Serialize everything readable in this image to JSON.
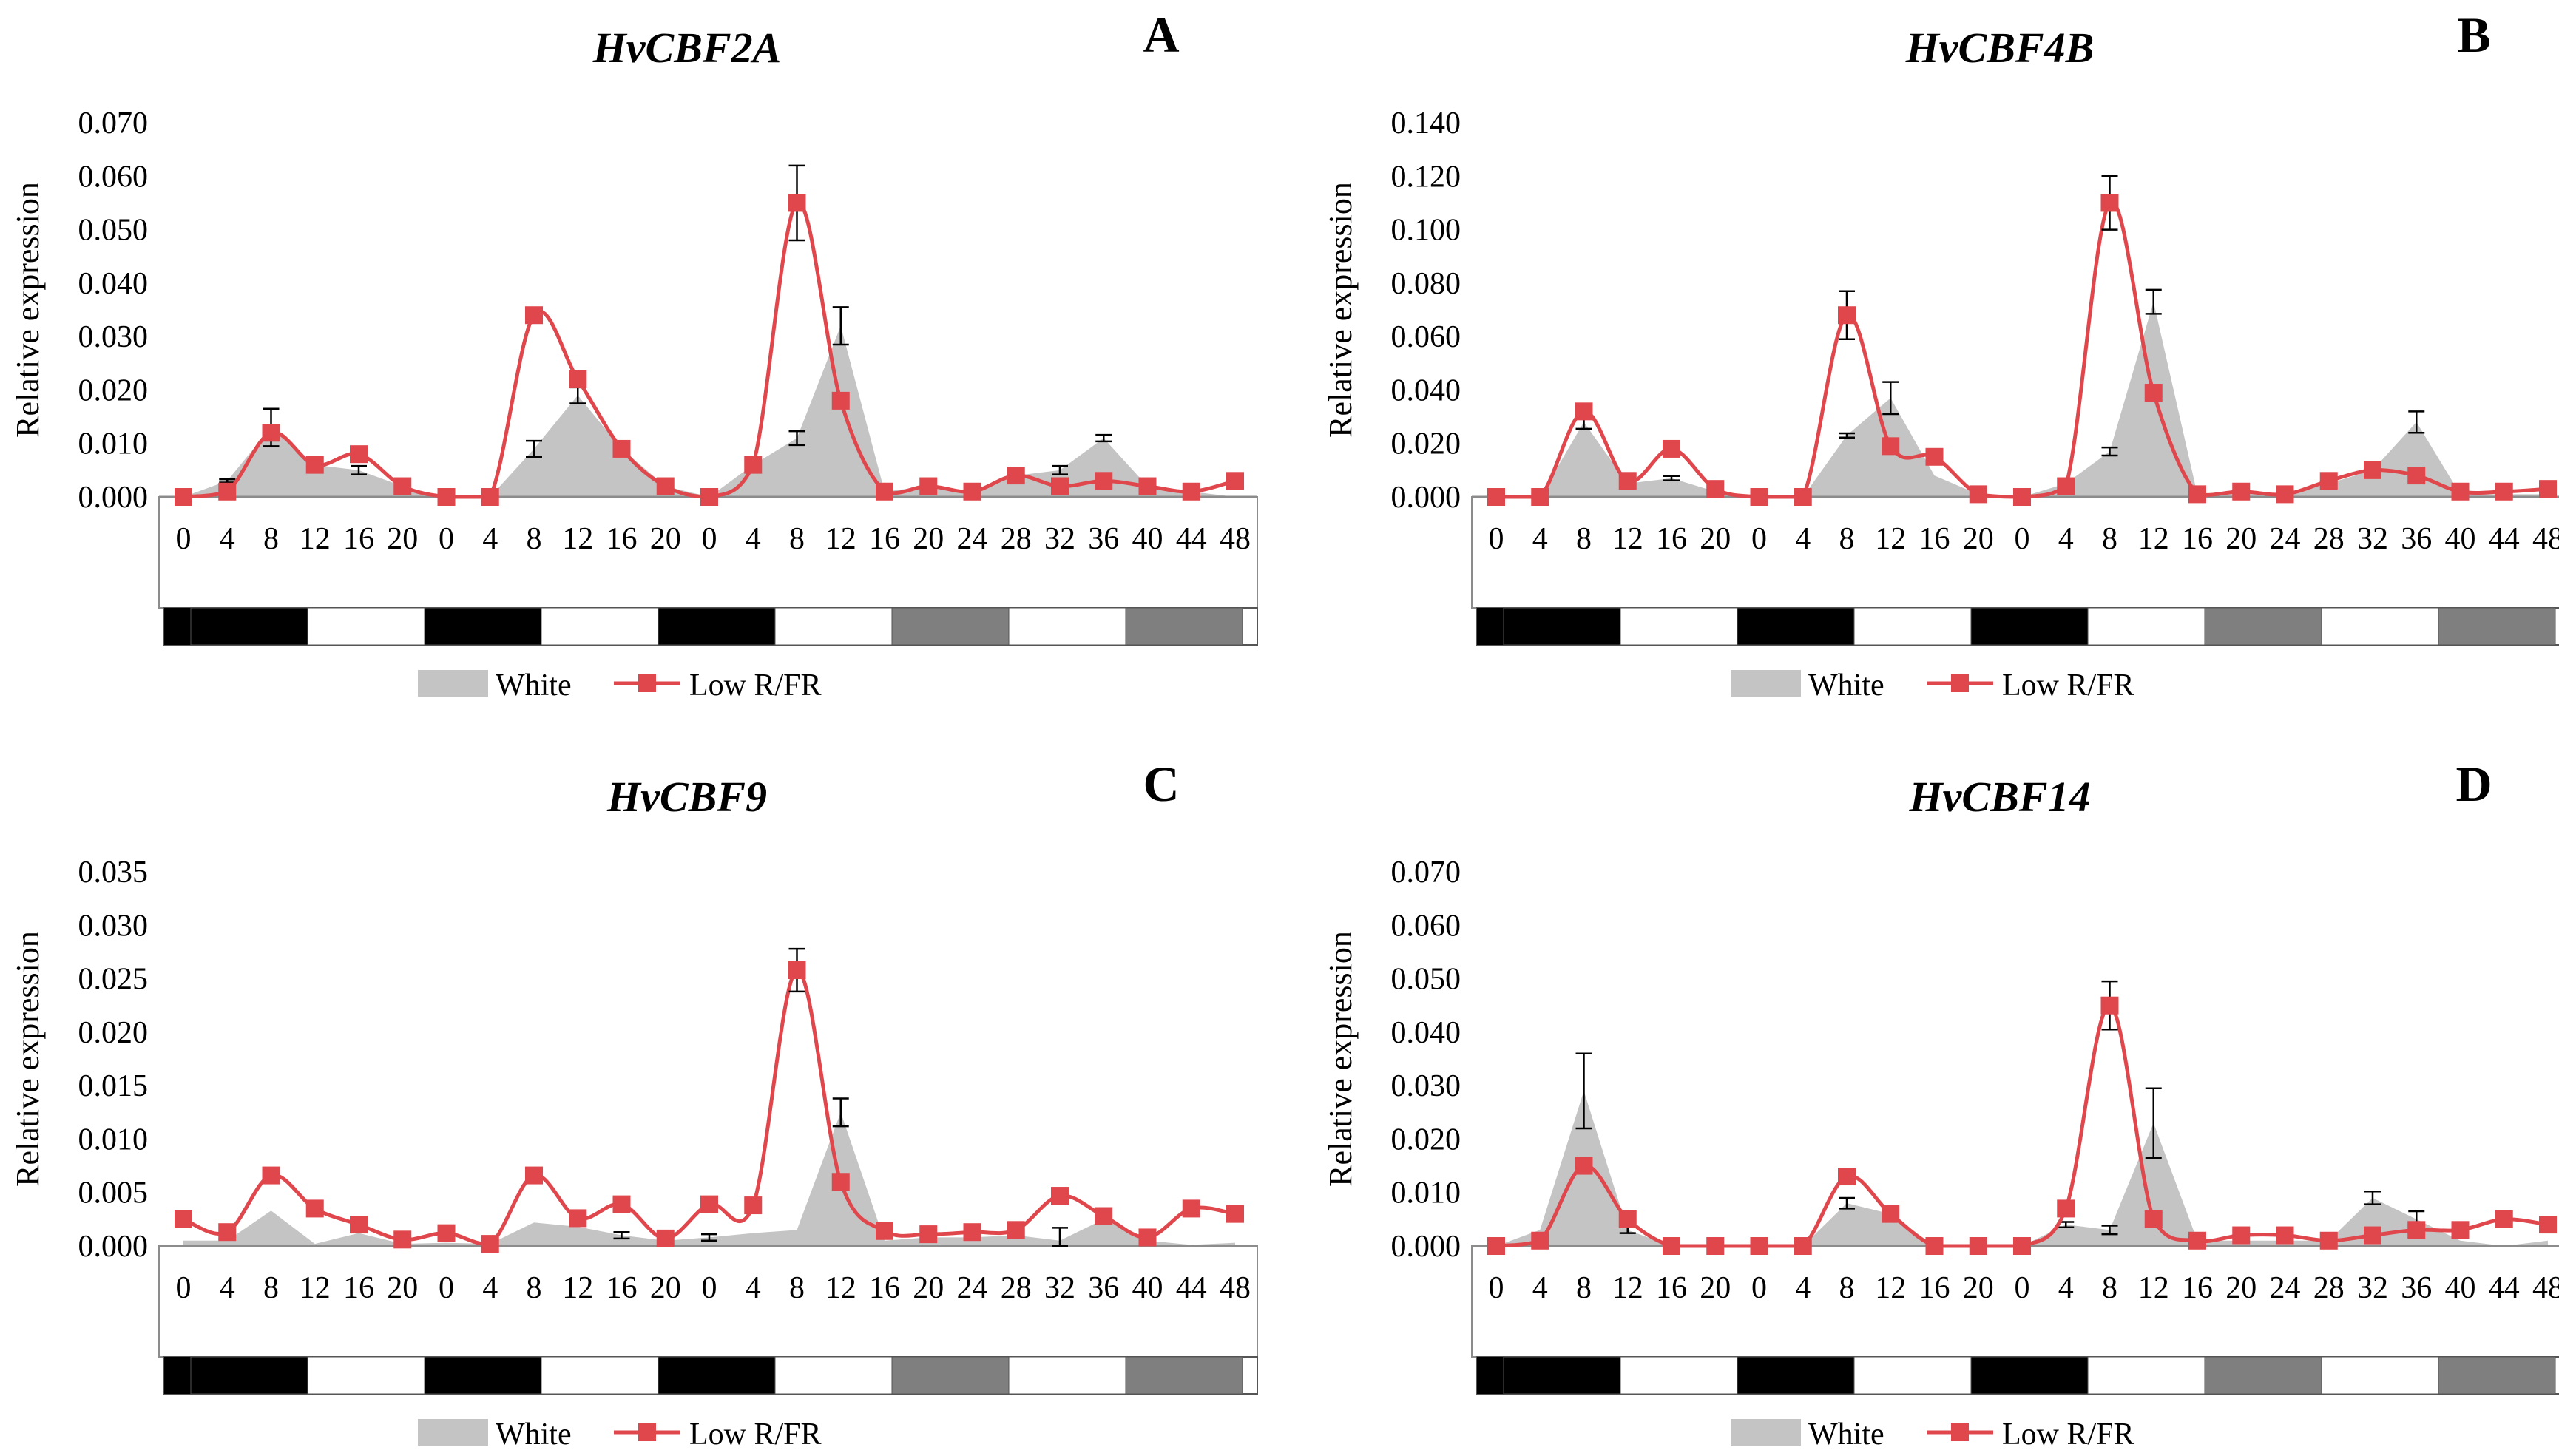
{
  "figure": {
    "x_ticks": [
      "0",
      "4",
      "8",
      "12",
      "16",
      "20",
      "0",
      "4",
      "8",
      "12",
      "16",
      "20",
      "0",
      "4",
      "8",
      "12",
      "16",
      "20",
      "24",
      "28",
      "32",
      "36",
      "40",
      "44",
      "48"
    ],
    "ylabel": "Relative expression",
    "legend": {
      "white": "White",
      "low": "Low R/FR"
    },
    "colors": {
      "white_fill": "#c4c4c4",
      "low_line": "#e0474c",
      "axis": "#8c8c8c",
      "text": "#000000"
    },
    "light_bar": [
      "black",
      "white",
      "white",
      "black",
      "black",
      "white",
      "white",
      "black",
      "black",
      "white",
      "white",
      "gray",
      "gray",
      "white",
      "white",
      "gray",
      "gray",
      "white"
    ]
  },
  "chart_data": [
    {
      "type": "area+line",
      "letter": "A",
      "title": "HvCBF2A",
      "ylabel": "Relative expression",
      "ylim": [
        0,
        0.07
      ],
      "yticks": [
        "0.000",
        "0.010",
        "0.020",
        "0.030",
        "0.040",
        "0.050",
        "0.060",
        "0.070"
      ],
      "categories": [
        "0",
        "4",
        "8",
        "12",
        "16",
        "20",
        "0",
        "4",
        "8",
        "12",
        "16",
        "20",
        "0",
        "4",
        "8",
        "12",
        "16",
        "20",
        "24",
        "28",
        "32",
        "36",
        "40",
        "44",
        "48"
      ],
      "series": [
        {
          "name": "White",
          "values": [
            0.0,
            0.003,
            0.013,
            0.006,
            0.005,
            0.002,
            0.0,
            0.0,
            0.009,
            0.019,
            0.009,
            0.002,
            0.0,
            0.006,
            0.011,
            0.032,
            0.001,
            0.002,
            0.001,
            0.004,
            0.005,
            0.011,
            0.002,
            0.001,
            0.0
          ],
          "errors": [
            0,
            0.0003,
            0.0035,
            0,
            0.0008,
            0,
            0,
            0,
            0.0015,
            0.0015,
            0,
            0,
            0,
            0,
            0.0013,
            0.0035,
            0,
            0,
            0,
            0,
            0.0008,
            0.0006,
            0,
            0,
            0
          ]
        },
        {
          "name": "Low R/FR",
          "values": [
            0.0,
            0.001,
            0.012,
            0.006,
            0.008,
            0.002,
            0.0,
            0.0,
            0.034,
            0.022,
            0.009,
            0.002,
            0.0,
            0.006,
            0.055,
            0.018,
            0.001,
            0.002,
            0.001,
            0.004,
            0.002,
            0.003,
            0.002,
            0.001,
            0.003
          ],
          "errors": [
            0,
            0,
            0,
            0,
            0,
            0,
            0,
            0,
            0,
            0,
            0,
            0,
            0,
            0,
            0.007,
            0,
            0,
            0,
            0,
            0,
            0,
            0,
            0,
            0,
            0
          ]
        }
      ]
    },
    {
      "type": "area+line",
      "letter": "B",
      "title": "HvCBF4B",
      "ylabel": "Relative expression",
      "ylim": [
        0,
        0.14
      ],
      "yticks": [
        "0.000",
        "0.020",
        "0.040",
        "0.060",
        "0.080",
        "0.100",
        "0.120",
        "0.140"
      ],
      "categories": [
        "0",
        "4",
        "8",
        "12",
        "16",
        "20",
        "0",
        "4",
        "8",
        "12",
        "16",
        "20",
        "0",
        "4",
        "8",
        "12",
        "16",
        "20",
        "24",
        "28",
        "32",
        "36",
        "40",
        "44",
        "48"
      ],
      "series": [
        {
          "name": "White",
          "values": [
            0.0,
            0.0,
            0.028,
            0.005,
            0.007,
            0.002,
            0.0,
            0.0,
            0.023,
            0.037,
            0.008,
            0.001,
            0.0,
            0.005,
            0.017,
            0.073,
            0.001,
            0.002,
            0.001,
            0.005,
            0.01,
            0.028,
            0.001,
            0.001,
            0.001
          ],
          "errors": [
            0,
            0,
            0.0025,
            0,
            0.0008,
            0,
            0,
            0,
            0.0008,
            0.006,
            0,
            0,
            0,
            0,
            0.0015,
            0.0045,
            0,
            0,
            0,
            0,
            0,
            0.004,
            0,
            0,
            0
          ]
        },
        {
          "name": "Low R/FR",
          "values": [
            0.0,
            0.0,
            0.032,
            0.006,
            0.018,
            0.003,
            0.0,
            0.0,
            0.068,
            0.019,
            0.015,
            0.001,
            0.0,
            0.004,
            0.11,
            0.039,
            0.001,
            0.002,
            0.001,
            0.006,
            0.01,
            0.008,
            0.002,
            0.002,
            0.003
          ],
          "errors": [
            0,
            0,
            0,
            0,
            0,
            0,
            0,
            0,
            0.009,
            0,
            0,
            0,
            0,
            0,
            0.01,
            0,
            0,
            0,
            0,
            0,
            0,
            0,
            0,
            0,
            0
          ]
        }
      ]
    },
    {
      "type": "area+line",
      "letter": "C",
      "title": "HvCBF9",
      "ylabel": "Relative expression",
      "ylim": [
        0,
        0.035
      ],
      "yticks": [
        "0.000",
        "0.005",
        "0.010",
        "0.015",
        "0.020",
        "0.025",
        "0.030",
        "0.035"
      ],
      "categories": [
        "0",
        "4",
        "8",
        "12",
        "16",
        "20",
        "0",
        "4",
        "8",
        "12",
        "16",
        "20",
        "0",
        "4",
        "8",
        "12",
        "16",
        "20",
        "24",
        "28",
        "32",
        "36",
        "40",
        "44",
        "48"
      ],
      "series": [
        {
          "name": "White",
          "values": [
            0.0005,
            0.0005,
            0.0033,
            0.0002,
            0.0012,
            0.0002,
            0.0003,
            0.0002,
            0.0022,
            0.0018,
            0.001,
            0.0005,
            0.0008,
            0.0012,
            0.0015,
            0.0125,
            0.0005,
            0.0008,
            0.0008,
            0.001,
            0.0005,
            0.0025,
            0.0005,
            0.0001,
            0.0003
          ],
          "errors": [
            0,
            0,
            0,
            0,
            0,
            0,
            0,
            0,
            0,
            0,
            0.0003,
            0,
            0.0003,
            0,
            0,
            0.0013,
            0,
            0,
            0,
            0,
            0.0012,
            0,
            0,
            0,
            0
          ]
        },
        {
          "name": "Low R/FR",
          "values": [
            0.0025,
            0.0013,
            0.0066,
            0.0035,
            0.002,
            0.0006,
            0.0012,
            0.0002,
            0.0066,
            0.0026,
            0.0039,
            0.0007,
            0.0039,
            0.0038,
            0.0258,
            0.006,
            0.0014,
            0.0011,
            0.0013,
            0.0015,
            0.0047,
            0.0028,
            0.0008,
            0.0035,
            0.003
          ],
          "errors": [
            0,
            0,
            0,
            0,
            0,
            0,
            0,
            0,
            0,
            0,
            0,
            0,
            0,
            0,
            0.002,
            0,
            0,
            0,
            0,
            0,
            0,
            0,
            0,
            0,
            0
          ]
        }
      ]
    },
    {
      "type": "area+line",
      "letter": "D",
      "title": "HvCBF14",
      "ylabel": "Relative expression",
      "ylim": [
        0,
        0.07
      ],
      "yticks": [
        "0.000",
        "0.010",
        "0.020",
        "0.030",
        "0.040",
        "0.050",
        "0.060",
        "0.070"
      ],
      "categories": [
        "0",
        "4",
        "8",
        "12",
        "16",
        "20",
        "0",
        "4",
        "8",
        "12",
        "16",
        "20",
        "0",
        "4",
        "8",
        "12",
        "16",
        "20",
        "24",
        "28",
        "32",
        "36",
        "40",
        "44",
        "48"
      ],
      "series": [
        {
          "name": "White",
          "values": [
            0.0,
            0.003,
            0.029,
            0.003,
            0.0,
            0.0,
            0.0,
            0.0,
            0.008,
            0.006,
            0.0,
            0.0,
            0.0,
            0.004,
            0.003,
            0.023,
            0.001,
            0.001,
            0.001,
            0.001,
            0.009,
            0.005,
            0.001,
            0.0,
            0.001
          ],
          "errors": [
            0,
            0,
            0.007,
            0.0006,
            0,
            0,
            0,
            0,
            0.001,
            0,
            0,
            0,
            0,
            0.0005,
            0.0008,
            0.0065,
            0,
            0,
            0,
            0,
            0.0012,
            0.0015,
            0,
            0,
            0
          ]
        },
        {
          "name": "Low R/FR",
          "values": [
            0.0,
            0.001,
            0.015,
            0.005,
            0.0,
            0.0,
            0.0,
            0.0,
            0.013,
            0.006,
            0.0,
            0.0,
            0.0,
            0.007,
            0.045,
            0.005,
            0.001,
            0.002,
            0.002,
            0.001,
            0.002,
            0.003,
            0.003,
            0.005,
            0.004
          ],
          "errors": [
            0,
            0,
            0,
            0,
            0,
            0,
            0,
            0,
            0,
            0,
            0,
            0,
            0,
            0,
            0.0045,
            0,
            0,
            0,
            0,
            0,
            0,
            0,
            0,
            0,
            0
          ]
        }
      ]
    }
  ]
}
